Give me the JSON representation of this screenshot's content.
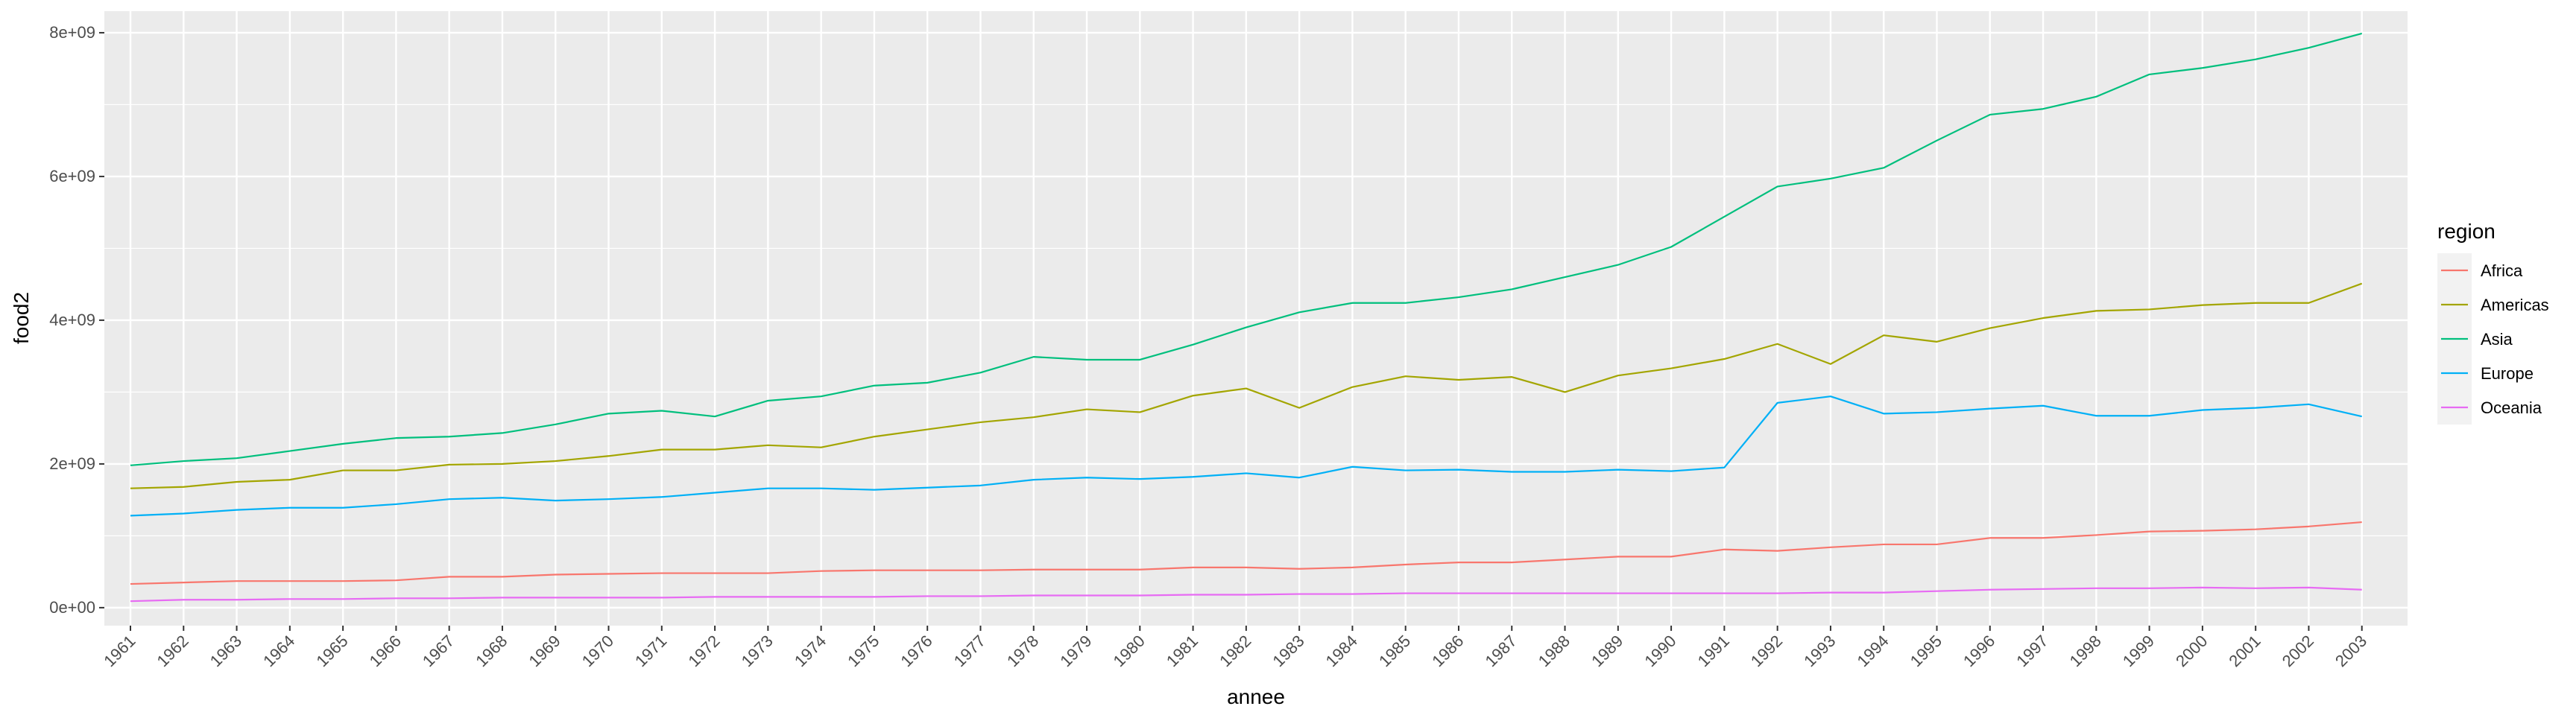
{
  "chart_data": {
    "type": "line",
    "title": "",
    "xlabel": "annee",
    "ylabel": "food2",
    "legend_title": "region",
    "legend_position": "right",
    "grid": true,
    "background": "#EBEBEB",
    "ylim": [
      -250000000,
      8300000000
    ],
    "y_ticks": [
      0,
      2000000000,
      4000000000,
      6000000000,
      8000000000
    ],
    "y_tick_labels": [
      "0e+00",
      "2e+09",
      "4e+09",
      "6e+09",
      "8e+09"
    ],
    "x": [
      "1961",
      "1962",
      "1963",
      "1964",
      "1965",
      "1966",
      "1967",
      "1968",
      "1969",
      "1970",
      "1971",
      "1972",
      "1973",
      "1974",
      "1975",
      "1976",
      "1977",
      "1978",
      "1979",
      "1980",
      "1981",
      "1982",
      "1983",
      "1984",
      "1985",
      "1986",
      "1987",
      "1988",
      "1989",
      "1990",
      "1991",
      "1992",
      "1993",
      "1994",
      "1995",
      "1996",
      "1997",
      "1998",
      "1999",
      "2000",
      "2001",
      "2002",
      "2003"
    ],
    "series": [
      {
        "name": "Africa",
        "color": "#F8766D",
        "values": [
          330000000,
          350000000,
          370000000,
          370000000,
          370000000,
          380000000,
          430000000,
          430000000,
          460000000,
          470000000,
          480000000,
          480000000,
          480000000,
          510000000,
          520000000,
          520000000,
          520000000,
          530000000,
          530000000,
          530000000,
          560000000,
          560000000,
          540000000,
          560000000,
          600000000,
          630000000,
          630000000,
          670000000,
          710000000,
          710000000,
          810000000,
          790000000,
          840000000,
          880000000,
          880000000,
          970000000,
          970000000,
          1010000000,
          1060000000,
          1070000000,
          1090000000,
          1130000000,
          1190000000
        ]
      },
      {
        "name": "Americas",
        "color": "#A3A500",
        "values": [
          1660000000,
          1680000000,
          1750000000,
          1780000000,
          1910000000,
          1910000000,
          1990000000,
          2000000000,
          2040000000,
          2110000000,
          2200000000,
          2200000000,
          2260000000,
          2230000000,
          2380000000,
          2480000000,
          2580000000,
          2650000000,
          2760000000,
          2720000000,
          2950000000,
          3050000000,
          2780000000,
          3070000000,
          3220000000,
          3170000000,
          3210000000,
          3000000000,
          3230000000,
          3330000000,
          3460000000,
          3670000000,
          3390000000,
          3790000000,
          3700000000,
          3890000000,
          4030000000,
          4130000000,
          4150000000,
          4210000000,
          4240000000,
          4240000000,
          4510000000
        ]
      },
      {
        "name": "Asia",
        "color": "#00BF7D",
        "values": [
          1980000000,
          2040000000,
          2080000000,
          2180000000,
          2280000000,
          2360000000,
          2380000000,
          2430000000,
          2550000000,
          2700000000,
          2740000000,
          2660000000,
          2880000000,
          2940000000,
          3090000000,
          3130000000,
          3270000000,
          3490000000,
          3450000000,
          3450000000,
          3660000000,
          3900000000,
          4110000000,
          4240000000,
          4240000000,
          4320000000,
          4430000000,
          4600000000,
          4770000000,
          5020000000,
          5440000000,
          5860000000,
          5970000000,
          6120000000,
          6500000000,
          6860000000,
          6940000000,
          7110000000,
          7420000000,
          7510000000,
          7630000000,
          7790000000,
          7990000000
        ]
      },
      {
        "name": "Europe",
        "color": "#00B0F6",
        "values": [
          1280000000,
          1310000000,
          1360000000,
          1390000000,
          1390000000,
          1440000000,
          1510000000,
          1530000000,
          1490000000,
          1510000000,
          1540000000,
          1600000000,
          1660000000,
          1660000000,
          1640000000,
          1670000000,
          1700000000,
          1780000000,
          1810000000,
          1790000000,
          1820000000,
          1870000000,
          1810000000,
          1960000000,
          1910000000,
          1920000000,
          1890000000,
          1890000000,
          1920000000,
          1900000000,
          1950000000,
          2850000000,
          2940000000,
          2700000000,
          2720000000,
          2770000000,
          2810000000,
          2670000000,
          2670000000,
          2750000000,
          2780000000,
          2830000000,
          2660000000
        ]
      },
      {
        "name": "Oceania",
        "color": "#E76BF3",
        "values": [
          90000000,
          110000000,
          110000000,
          120000000,
          120000000,
          130000000,
          130000000,
          140000000,
          140000000,
          140000000,
          140000000,
          150000000,
          150000000,
          150000000,
          150000000,
          160000000,
          160000000,
          170000000,
          170000000,
          170000000,
          180000000,
          180000000,
          190000000,
          190000000,
          200000000,
          200000000,
          200000000,
          200000000,
          200000000,
          200000000,
          200000000,
          200000000,
          210000000,
          210000000,
          230000000,
          250000000,
          260000000,
          270000000,
          270000000,
          280000000,
          270000000,
          280000000,
          250000000
        ]
      }
    ]
  }
}
